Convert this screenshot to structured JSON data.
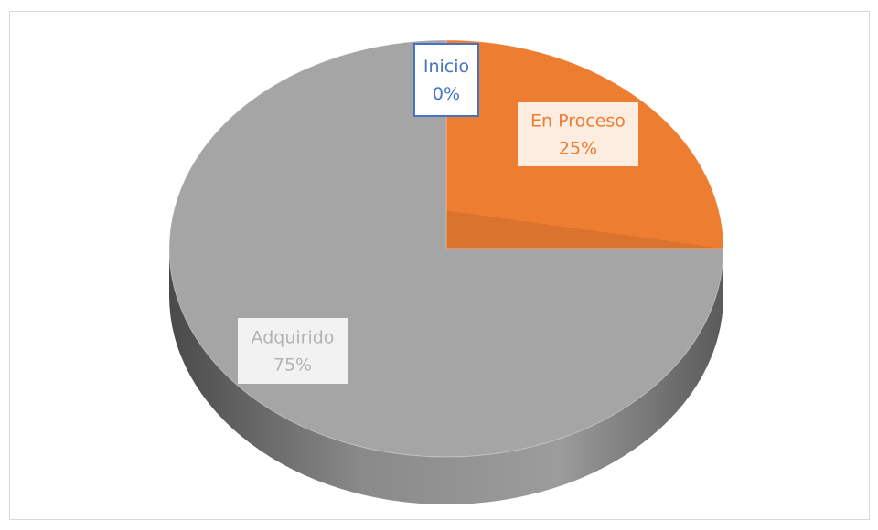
{
  "chart_data": {
    "type": "pie",
    "categories": [
      "Inicio",
      "En Proceso",
      "Adquirido"
    ],
    "values": [
      0,
      25,
      75
    ],
    "value_labels": [
      "0%",
      "25%",
      "75%"
    ],
    "colors": [
      "#4472c4",
      "#ed7d31",
      "#a5a5a5"
    ]
  }
}
